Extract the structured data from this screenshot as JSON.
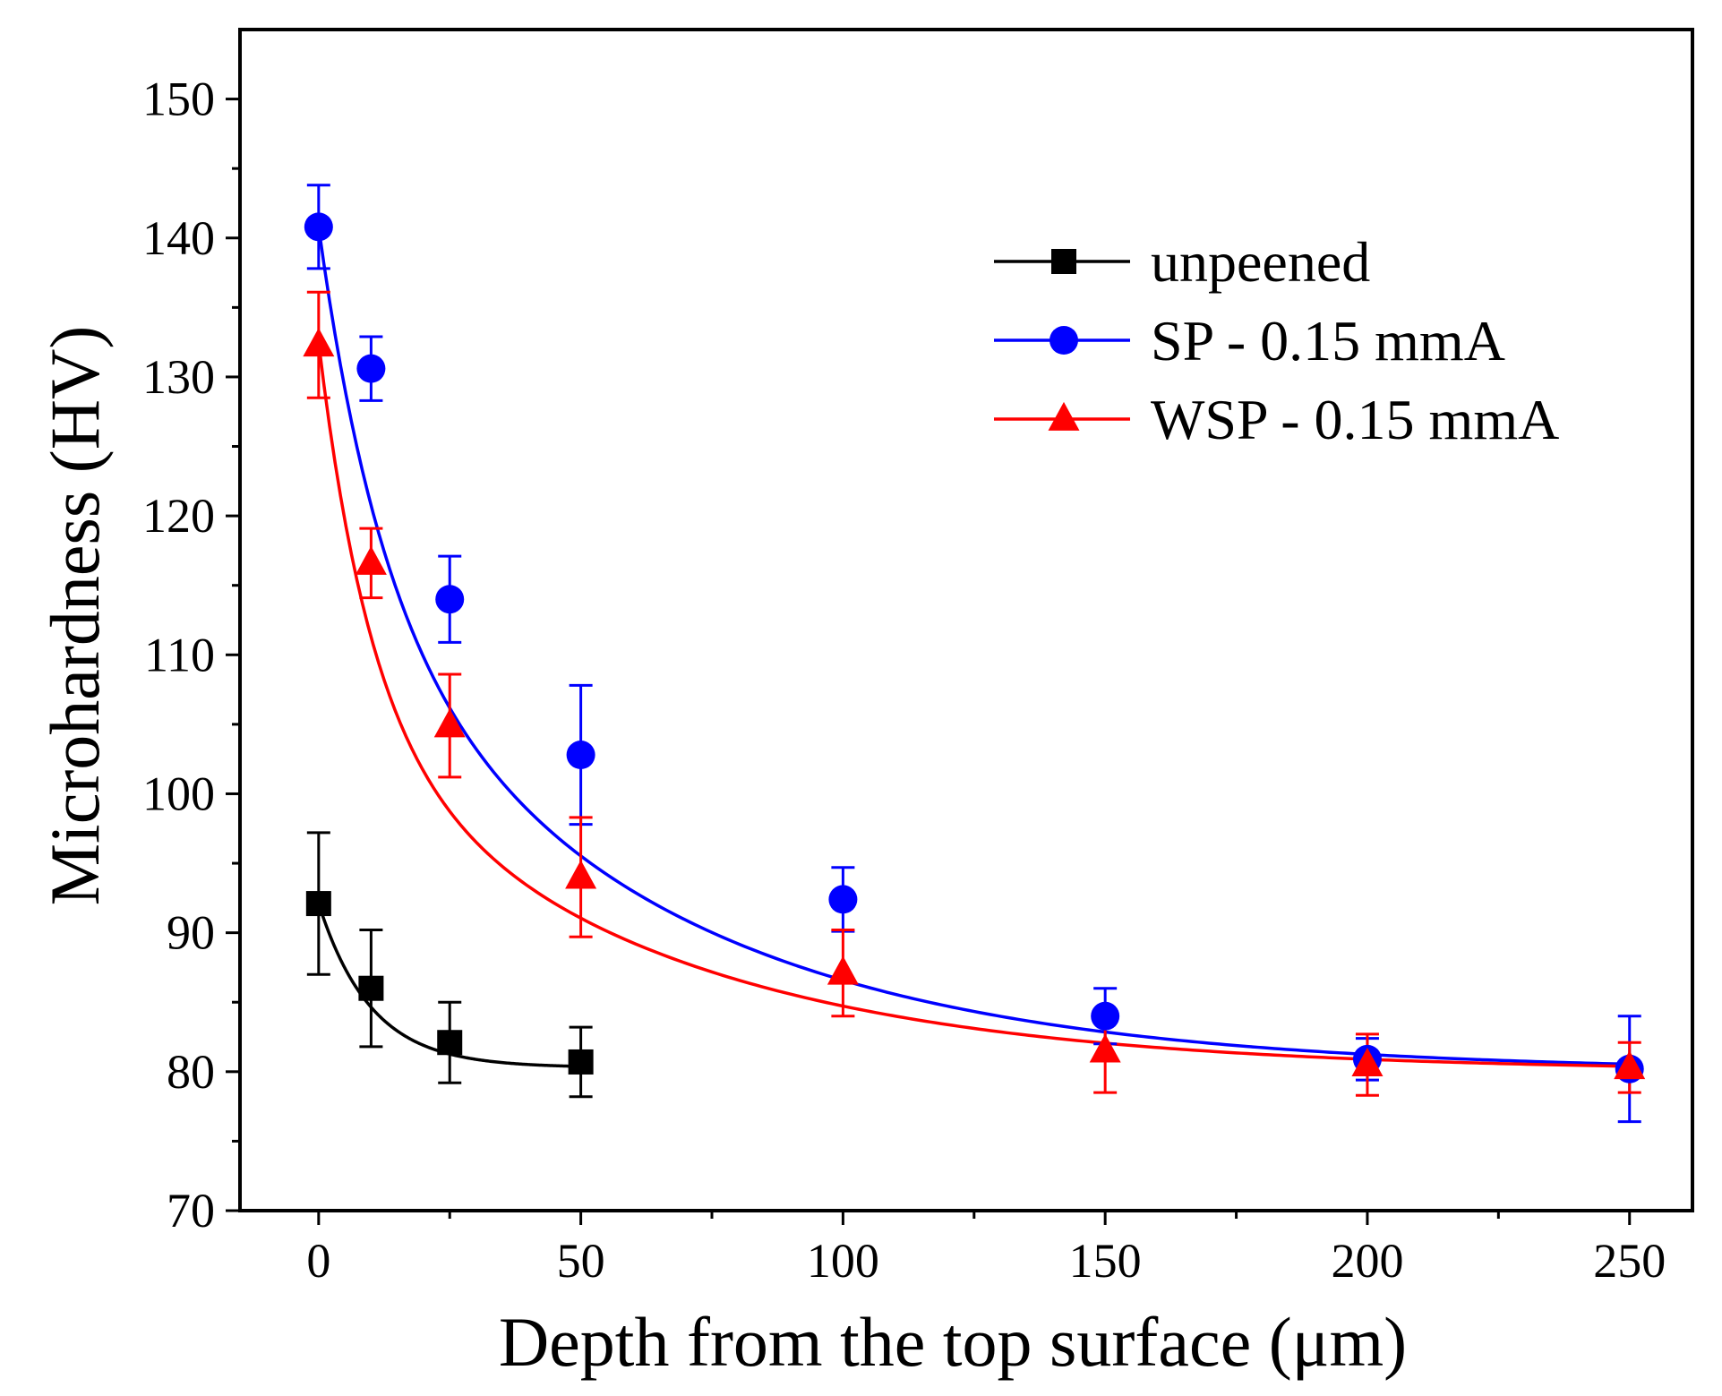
{
  "chart_data": {
    "type": "line",
    "title": "",
    "xlabel": "Depth from the top surface (μm)",
    "ylabel": "Microhardness (HV)",
    "xlim": [
      -15,
      262
    ],
    "ylim": [
      70,
      155
    ],
    "x_ticks": [
      0,
      50,
      100,
      150,
      200,
      250
    ],
    "y_ticks": [
      70,
      80,
      90,
      100,
      110,
      120,
      130,
      140,
      150
    ],
    "x_minor_ticks": [
      25,
      75,
      125,
      175,
      225
    ],
    "y_minor_ticks": [
      75,
      85,
      95,
      105,
      115,
      125,
      135,
      145
    ],
    "grid": false,
    "legend_position": "top-right",
    "series": [
      {
        "name": "unpeened",
        "color": "#000000",
        "marker": "square",
        "x": [
          0,
          10,
          25,
          50
        ],
        "y": [
          92.1,
          86.0,
          82.1,
          80.7
        ],
        "err": [
          5.1,
          4.2,
          2.9,
          2.5
        ],
        "fit": {
          "y0": 80.3,
          "A": 11.8,
          "t": 10.0
        }
      },
      {
        "name": "SP - 0.15 mmA",
        "color": "#0000ff",
        "marker": "circle",
        "x": [
          0,
          10,
          25,
          50,
          100,
          150,
          200,
          250
        ],
        "y": [
          140.8,
          130.6,
          114.0,
          102.8,
          92.4,
          84.0,
          80.9,
          80.2
        ],
        "err": [
          3.0,
          2.3,
          3.1,
          5.0,
          2.3,
          2.0,
          1.5,
          3.8
        ],
        "fit": {
          "y0": 80.0,
          "A1": 26.0,
          "t1": 12.0,
          "A2": 34.8,
          "t2": 60.0
        }
      },
      {
        "name": "WSP - 0.15 mmA",
        "color": "#ff0000",
        "marker": "triangle",
        "x": [
          0,
          10,
          25,
          50,
          100,
          150,
          200,
          250
        ],
        "y": [
          132.3,
          116.6,
          104.9,
          94.0,
          87.1,
          81.5,
          80.5,
          80.3
        ],
        "err": [
          3.8,
          2.5,
          3.7,
          4.3,
          3.1,
          3.0,
          2.2,
          1.8
        ],
        "fit": {
          "y0": 80.0,
          "A1": 27.5,
          "t1": 10.0,
          "A2": 25.0,
          "t2": 60.0
        }
      }
    ]
  }
}
